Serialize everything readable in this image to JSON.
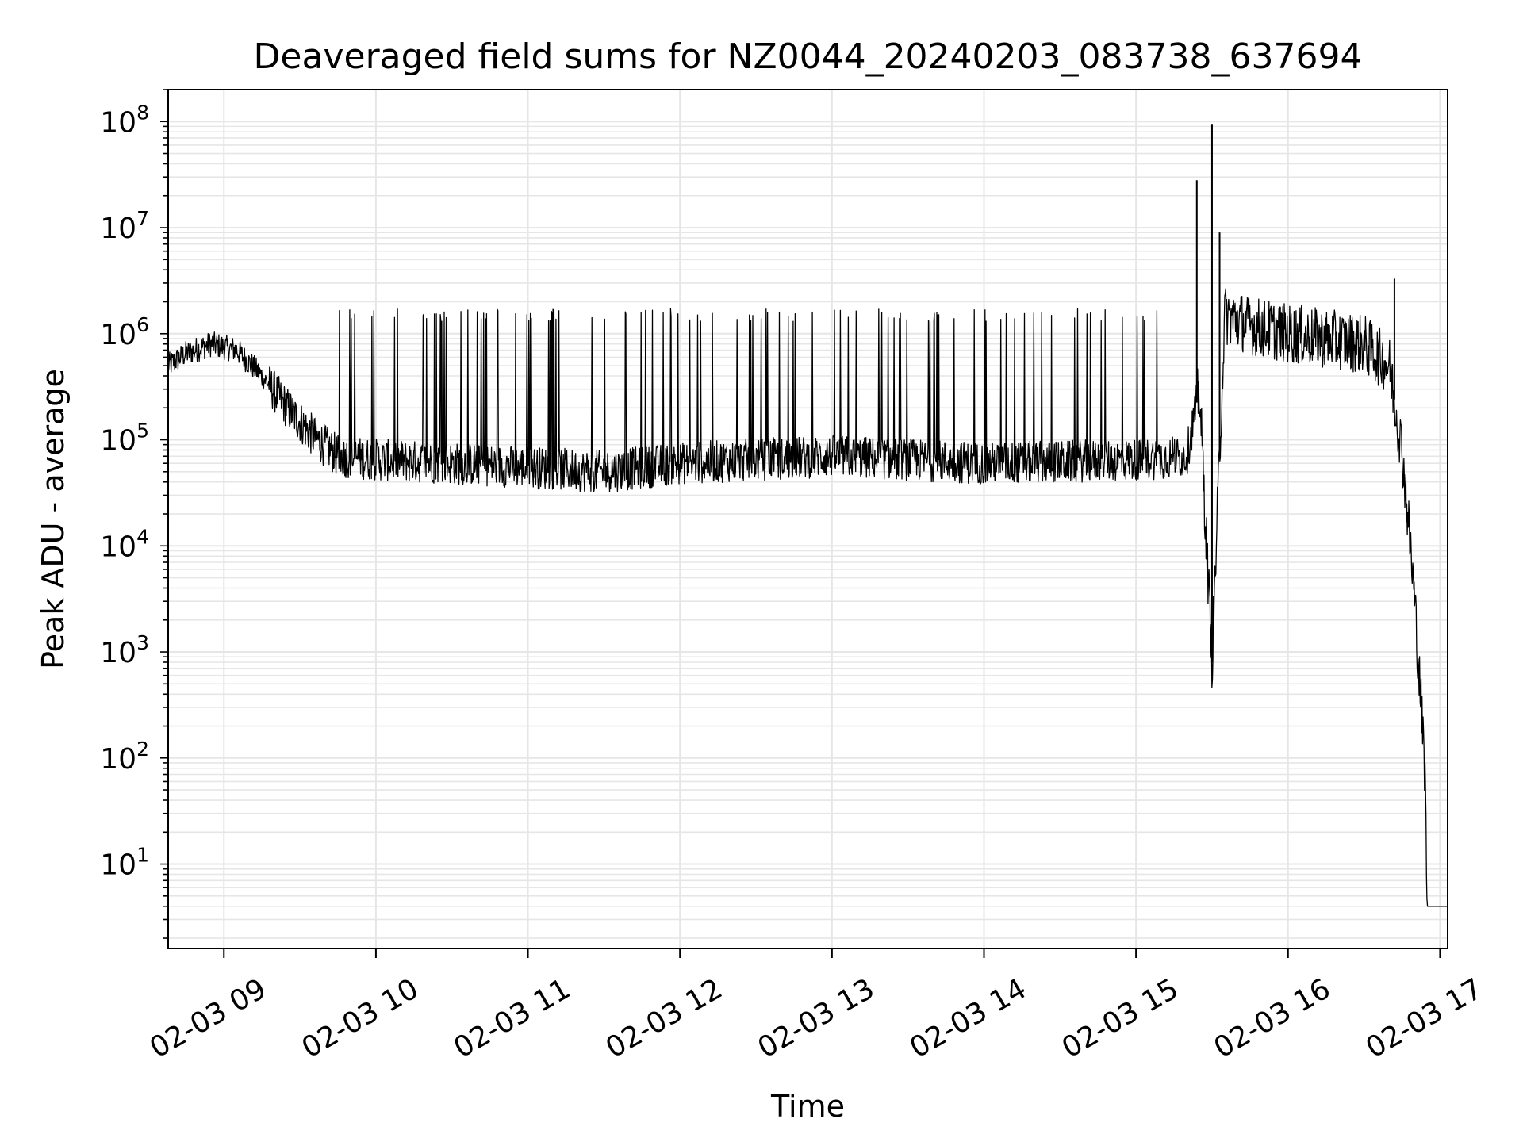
{
  "chart_data": {
    "type": "line",
    "title": "Deaveraged field sums for NZ0044_20240203_083738_637694",
    "xlabel": "Time",
    "ylabel": "Peak ADU - average",
    "yscale": "log",
    "ylim": [
      1.6,
      200000000.0
    ],
    "xlim": [
      "2024-02-03 08:38",
      "2024-02-03 17:03"
    ],
    "grid": true,
    "line_color": "#000000",
    "grid_color": "#e6e6e6",
    "x_ticks": [
      "02-03 09",
      "02-03 10",
      "02-03 11",
      "02-03 12",
      "02-03 13",
      "02-03 14",
      "02-03 15",
      "02-03 16",
      "02-03 17"
    ],
    "y_ticks": [
      {
        "base": "10",
        "exp": "1",
        "value": 10
      },
      {
        "base": "10",
        "exp": "2",
        "value": 100
      },
      {
        "base": "10",
        "exp": "3",
        "value": 1000
      },
      {
        "base": "10",
        "exp": "4",
        "value": 10000
      },
      {
        "base": "10",
        "exp": "5",
        "value": 100000
      },
      {
        "base": "10",
        "exp": "6",
        "value": 1000000
      },
      {
        "base": "10",
        "exp": "7",
        "value": 10000000
      },
      {
        "base": "10",
        "exp": "8",
        "value": 100000000
      }
    ],
    "series": [
      {
        "x": [
          "2024-02-03 08:38",
          "2024-02-03 08:45",
          "2024-02-03 08:55",
          "2024-02-03 09:05",
          "2024-02-03 09:15",
          "2024-02-03 09:25",
          "2024-02-03 09:35",
          "2024-02-03 09:45",
          "2024-02-03 10:00",
          "2024-02-03 10:30",
          "2024-02-03 11:00",
          "2024-02-03 11:30",
          "2024-02-03 12:00",
          "2024-02-03 12:30",
          "2024-02-03 13:00",
          "2024-02-03 13:30",
          "2024-02-03 14:00",
          "2024-02-03 14:30",
          "2024-02-03 15:00",
          "2024-02-03 15:20",
          "2024-02-03 15:25",
          "2024-02-03 15:30",
          "2024-02-03 15:35",
          "2024-02-03 15:45",
          "2024-02-03 16:00",
          "2024-02-03 16:15",
          "2024-02-03 16:30",
          "2024-02-03 16:40",
          "2024-02-03 16:45",
          "2024-02-03 16:48",
          "2024-02-03 16:50",
          "2024-02-03 16:52",
          "2024-02-03 16:54",
          "2024-02-03 16:55",
          "2024-02-03 17:03"
        ],
        "y": [
          500000,
          650000,
          800000,
          700000,
          400000,
          200000,
          110000,
          70000,
          65000,
          60000,
          55000,
          50000,
          60000,
          65000,
          70000,
          65000,
          60000,
          62000,
          65000,
          70000,
          300000,
          800,
          1500000,
          1200000,
          1000000,
          900000,
          800000,
          500000,
          80000,
          12000,
          3000,
          500,
          80,
          4,
          4
        ]
      }
    ],
    "spikes": [
      {
        "x": "2024-02-03 15:24",
        "y": 28000000
      },
      {
        "x": "2024-02-03 15:30",
        "y": 95000000
      },
      {
        "x": "2024-02-03 15:30",
        "y": 800,
        "direction": "down"
      },
      {
        "x": "2024-02-03 15:33",
        "y": 9000000
      },
      {
        "x": "2024-02-03 16:42",
        "y": 3300000
      }
    ],
    "recurring_spikes": {
      "x_range": [
        "2024-02-03 09:45",
        "2024-02-03 15:15"
      ],
      "y": 1500000
    }
  }
}
